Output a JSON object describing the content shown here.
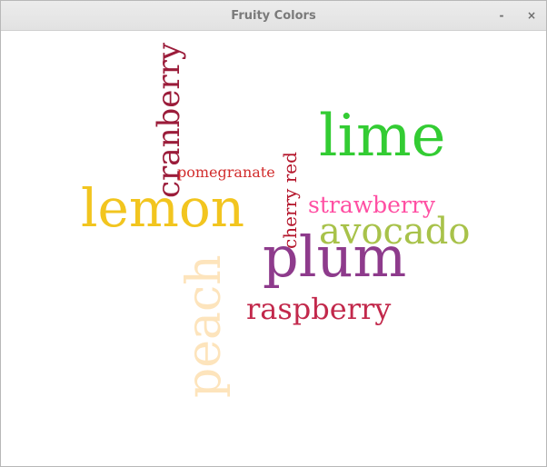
{
  "window": {
    "title": "Fruity Colors",
    "minimize_label": "-",
    "close_label": "×"
  },
  "words": [
    {
      "text": "cranberry",
      "color": "#9b1c3a",
      "orientation": "vertical"
    },
    {
      "text": "pomegranate",
      "color": "#d22d2d",
      "orientation": "horizontal"
    },
    {
      "text": "cherry red",
      "color": "#b4142a",
      "orientation": "vertical"
    },
    {
      "text": "lime",
      "color": "#33cc33",
      "orientation": "horizontal"
    },
    {
      "text": "lemon",
      "color": "#f2c51f",
      "orientation": "horizontal"
    },
    {
      "text": "strawberry",
      "color": "#ff4fa3",
      "orientation": "horizontal"
    },
    {
      "text": "avocado",
      "color": "#a8c24a",
      "orientation": "horizontal"
    },
    {
      "text": "plum",
      "color": "#8e3b8c",
      "orientation": "horizontal"
    },
    {
      "text": "peach",
      "color": "#fde4bc",
      "orientation": "vertical"
    },
    {
      "text": "raspberry",
      "color": "#c2284b",
      "orientation": "horizontal"
    }
  ]
}
